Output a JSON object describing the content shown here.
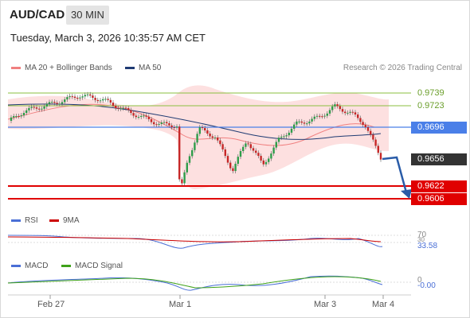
{
  "header": {
    "symbol": "AUD/CAD",
    "timeframe": "30 MIN",
    "datetime": "Tuesday, March 3, 2026 10:35:57 AM CET"
  },
  "legend": {
    "ma20_label": "MA 20 + Bollinger Bands",
    "ma20_color": "#f08080",
    "ma50_label": "MA 50",
    "ma50_color": "#1f3b73"
  },
  "credit": "Research © 2026 Trading Central",
  "levels": {
    "r2": "0.9739",
    "r1": "0.9723",
    "pivot": "0.9696",
    "last": "0.9656",
    "s1": "0.9622",
    "s2": "0.9606",
    "resistance_color": "#8bbf3f",
    "pivot_color": "#4a7fe8",
    "support_color": "#e00000",
    "last_color": "#333333"
  },
  "rsi": {
    "label": "RSI",
    "ma_label": "9MA",
    "rsi_color": "#4a6fd6",
    "ma_color": "#cc0000",
    "level_70": "70",
    "level_30": "30",
    "value": "33.58"
  },
  "macd": {
    "label": "MACD",
    "signal_label": "MACD Signal",
    "macd_color": "#4a6fd6",
    "signal_color": "#3fa21a",
    "zero_label": "0",
    "value": "-0.00"
  },
  "xaxis": [
    "Feb 27",
    "Mar 1",
    "Mar 3",
    "Mar 4"
  ]
}
